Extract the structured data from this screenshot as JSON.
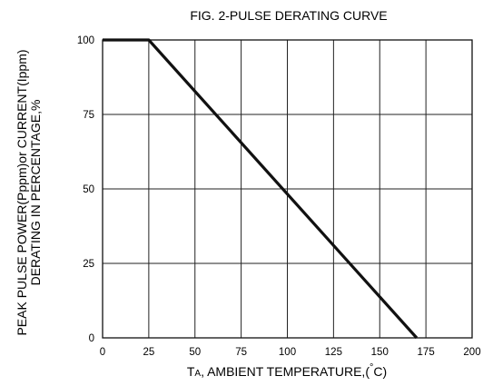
{
  "chart_data": {
    "type": "line",
    "title": "FIG. 2-PULSE DERATING CURVE",
    "xlabel": "TA, AMBIENT TEMPERATURE,(°C)",
    "xlabel_parts": {
      "main": "T",
      "sub": "A",
      "rest": ", AMBIENT TEMPERATURE,(",
      "degree": "°",
      "unit": "C)"
    },
    "ylabel_lines": [
      "PEAK PULSE POWER(Pppm)or CURRENT(Ippm)",
      "DERATING IN PERCENTAGE,%"
    ],
    "xlim": [
      0,
      200
    ],
    "ylim": [
      0,
      100
    ],
    "x_ticks": [
      0,
      25,
      50,
      75,
      100,
      125,
      150,
      175,
      200
    ],
    "y_ticks": [
      0,
      25,
      50,
      75,
      100
    ],
    "grid": true,
    "series": [
      {
        "x": [
          0,
          25,
          170
        ],
        "y": [
          100,
          100,
          0
        ]
      }
    ]
  }
}
